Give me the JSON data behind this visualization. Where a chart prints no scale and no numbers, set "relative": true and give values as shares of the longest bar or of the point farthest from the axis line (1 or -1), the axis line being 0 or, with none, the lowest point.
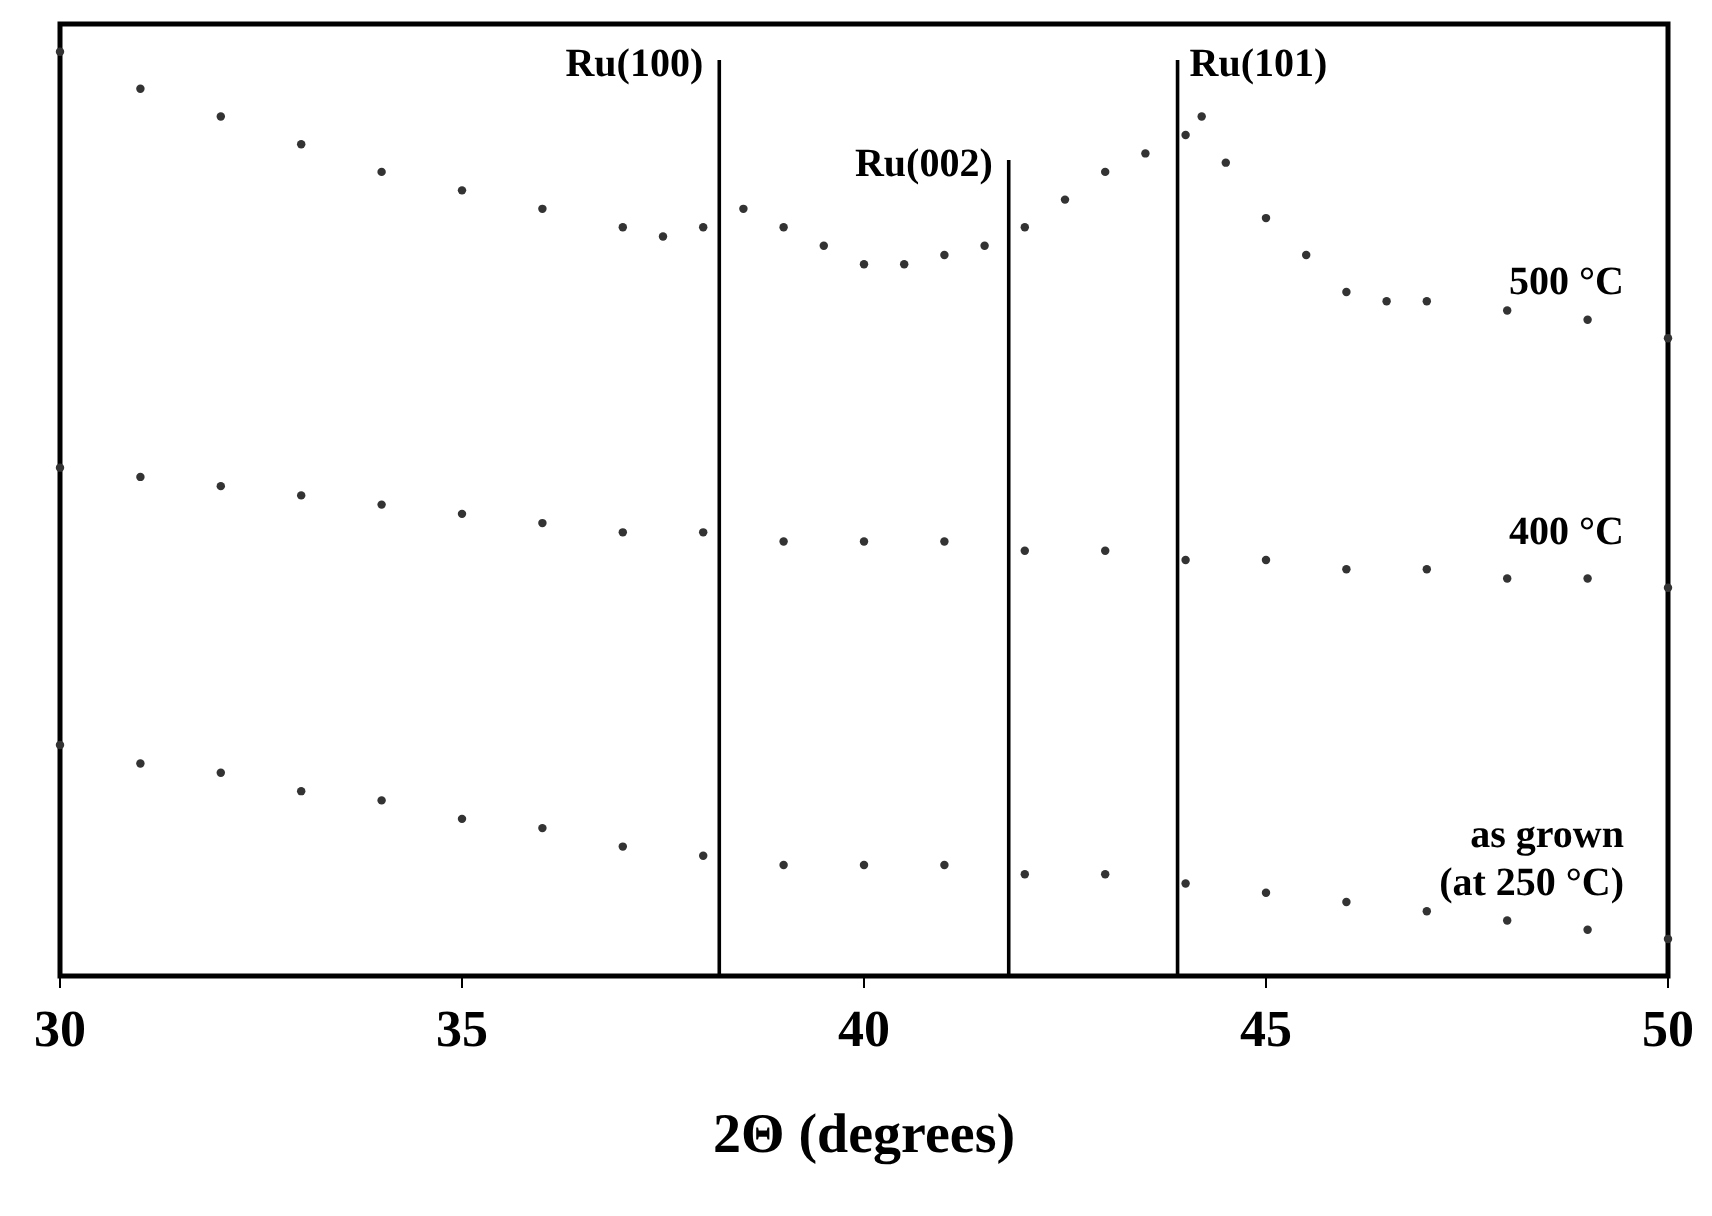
{
  "chart_data": {
    "type": "scatter",
    "xlabel": "2Θ (degrees)",
    "xlim": [
      30,
      50
    ],
    "xticks": [
      30,
      35,
      40,
      45,
      50
    ],
    "tick_labels": "x",
    "relative": true,
    "marker": "circle",
    "grid": false,
    "series": [
      {
        "name": "500 °C",
        "color": "#333333",
        "x": [
          30,
          31,
          32,
          33,
          34,
          35,
          36,
          37,
          37.5,
          38,
          38.5,
          39,
          39.5,
          40,
          40.5,
          41,
          41.5,
          42,
          42.5,
          43,
          43.5,
          44,
          44.2,
          44.5,
          45,
          45.5,
          46,
          46.5,
          47,
          48,
          49,
          50
        ],
        "values": [
          1.0,
          0.96,
          0.93,
          0.9,
          0.87,
          0.85,
          0.83,
          0.81,
          0.8,
          0.81,
          0.83,
          0.81,
          0.79,
          0.77,
          0.77,
          0.78,
          0.79,
          0.81,
          0.84,
          0.87,
          0.89,
          0.91,
          0.93,
          0.88,
          0.82,
          0.78,
          0.74,
          0.73,
          0.73,
          0.72,
          0.71,
          0.69
        ]
      },
      {
        "name": "400 °C",
        "color": "#333333",
        "x": [
          30,
          31,
          32,
          33,
          34,
          35,
          36,
          37,
          38,
          39,
          40,
          41,
          42,
          43,
          44,
          45,
          46,
          47,
          48,
          49,
          50
        ],
        "values": [
          0.55,
          0.54,
          0.53,
          0.52,
          0.51,
          0.5,
          0.49,
          0.48,
          0.48,
          0.47,
          0.47,
          0.47,
          0.46,
          0.46,
          0.45,
          0.45,
          0.44,
          0.44,
          0.43,
          0.43,
          0.42
        ]
      },
      {
        "name": "as grown (at 250 °C)",
        "color": "#333333",
        "x": [
          30,
          31,
          32,
          33,
          34,
          35,
          36,
          37,
          38,
          39,
          40,
          41,
          42,
          43,
          44,
          45,
          46,
          47,
          48,
          49,
          50
        ],
        "values": [
          0.25,
          0.23,
          0.22,
          0.2,
          0.19,
          0.17,
          0.16,
          0.14,
          0.13,
          0.12,
          0.12,
          0.12,
          0.11,
          0.11,
          0.1,
          0.09,
          0.08,
          0.07,
          0.06,
          0.05,
          0.04
        ]
      }
    ],
    "ref_lines": [
      {
        "axis": "x",
        "value": 38.2,
        "label": "Ru(100)"
      },
      {
        "axis": "x",
        "value": 41.8,
        "label": "Ru(002)"
      },
      {
        "axis": "x",
        "value": 43.9,
        "label": "Ru(101)"
      }
    ]
  }
}
